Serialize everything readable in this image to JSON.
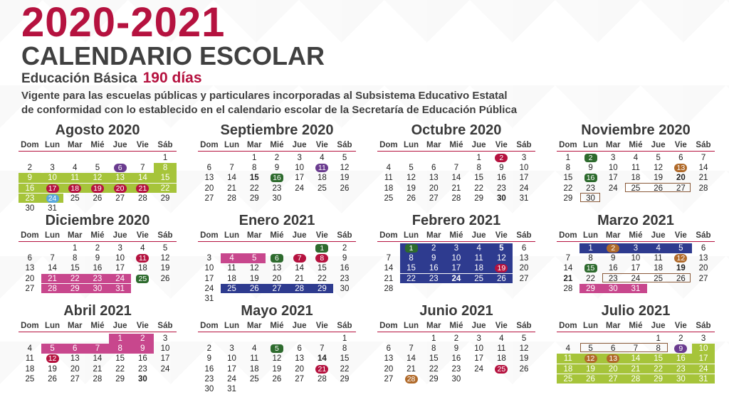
{
  "header": {
    "year": "2020-2021",
    "title": "CALENDARIO ESCOLAR",
    "level": "Educación Básica",
    "days": "190 días",
    "desc1": "Vigente para las escuelas públicas y particulares incorporadas al Subsistema Educativo Estatal",
    "desc2": "de conformidad con lo establecido en el calendario escolar de la Secretaría de Educación Pública"
  },
  "weekdays": [
    "Dom",
    "Lun",
    "Mar",
    "Mié",
    "Jue",
    "Vie",
    "Sáb"
  ],
  "colors": {
    "green": "#a6c43a",
    "pink": "#c8478d",
    "blue": "#2e3b8f",
    "red": "#b5123f",
    "purple": "#6a3b8f",
    "darkgreen": "#2e6b2e",
    "orange": "#b06a2a",
    "lightblue": "#5aa8dc"
  },
  "months": [
    {
      "name": "Agosto 2020",
      "start": 6,
      "days": 31,
      "bands": [
        {
          "from": 8,
          "to": 8,
          "c": "green"
        },
        {
          "from": 9,
          "to": 24,
          "c": "green"
        }
      ],
      "marks": {
        "6": "purple",
        "17": "red",
        "18": "red",
        "19": "red",
        "20": "red",
        "21": "red",
        "24": "lightblue"
      },
      "bold": [],
      "boxes": []
    },
    {
      "name": "Septiembre 2020",
      "start": 2,
      "days": 30,
      "bands": [],
      "marks": {
        "11": "purple",
        "16": "darkgreen"
      },
      "bold": [
        "15"
      ],
      "boxes": []
    },
    {
      "name": "Octubre 2020",
      "start": 4,
      "days": 31,
      "bands": [],
      "marks": {
        "2": "red"
      },
      "bold": [
        "30"
      ],
      "boxes": []
    },
    {
      "name": "Noviembre 2020",
      "start": 0,
      "days": 30,
      "bands": [],
      "marks": {
        "2": "darkgreen",
        "13": "orange",
        "16": "darkgreen"
      },
      "bold": [
        "20"
      ],
      "boxes": [
        {
          "from": 25,
          "to": 27
        },
        {
          "from": 30,
          "to": 30
        }
      ]
    },
    {
      "name": "Diciembre 2020",
      "start": 2,
      "days": 31,
      "bands": [
        {
          "from": 21,
          "to": 24,
          "c": "pink"
        },
        {
          "from": 28,
          "to": 31,
          "c": "pink"
        }
      ],
      "marks": {
        "11": "red",
        "25": "darkgreen"
      },
      "bold": [],
      "boxes": []
    },
    {
      "name": "Enero 2021",
      "start": 5,
      "days": 31,
      "bands": [
        {
          "from": 4,
          "to": 5,
          "c": "pink"
        },
        {
          "from": 25,
          "to": 29,
          "c": "blue"
        }
      ],
      "marks": {
        "1": "darkgreen",
        "6": "darkgreen",
        "7": "red",
        "8": "red"
      },
      "bold": [],
      "boxes": []
    },
    {
      "name": "Febrero 2021",
      "start": 1,
      "days": 28,
      "bands": [
        {
          "from": 1,
          "to": 5,
          "c": "blue"
        },
        {
          "from": 8,
          "to": 12,
          "c": "blue"
        },
        {
          "from": 15,
          "to": 19,
          "c": "blue"
        },
        {
          "from": 22,
          "to": 26,
          "c": "blue"
        }
      ],
      "marks": {
        "1": "darkgreen",
        "19": "red"
      },
      "bold": [
        "5",
        "24"
      ],
      "boxes": []
    },
    {
      "name": "Marzo 2021",
      "start": 1,
      "days": 31,
      "bands": [
        {
          "from": 1,
          "to": 5,
          "c": "blue"
        },
        {
          "from": 29,
          "to": 31,
          "c": "pink"
        }
      ],
      "marks": {
        "2": "orange",
        "12": "orange",
        "15": "darkgreen"
      },
      "bold": [
        "19",
        "21"
      ],
      "boxes": [
        {
          "from": 23,
          "to": 26
        }
      ]
    },
    {
      "name": "Abril 2021",
      "start": 4,
      "days": 30,
      "bands": [
        {
          "from": 1,
          "to": 2,
          "c": "pink"
        },
        {
          "from": 5,
          "to": 9,
          "c": "pink"
        }
      ],
      "marks": {
        "12": "red"
      },
      "bold": [
        "30"
      ],
      "boxes": []
    },
    {
      "name": "Mayo 2021",
      "start": 6,
      "days": 31,
      "bands": [],
      "marks": {
        "5": "darkgreen",
        "21": "red"
      },
      "bold": [
        "14"
      ],
      "boxes": []
    },
    {
      "name": "Junio 2021",
      "start": 2,
      "days": 30,
      "bands": [],
      "marks": {
        "25": "red",
        "28": "orange"
      },
      "bold": [],
      "boxes": []
    },
    {
      "name": "Julio 2021",
      "start": 4,
      "days": 31,
      "bands": [
        {
          "from": 10,
          "to": 10,
          "c": "green"
        },
        {
          "from": 11,
          "to": 31,
          "c": "green"
        }
      ],
      "marks": {
        "9": "purple",
        "12": "orange",
        "13": "orange"
      },
      "bold": [],
      "boxes": [
        {
          "from": 5,
          "to": 8
        }
      ]
    }
  ]
}
